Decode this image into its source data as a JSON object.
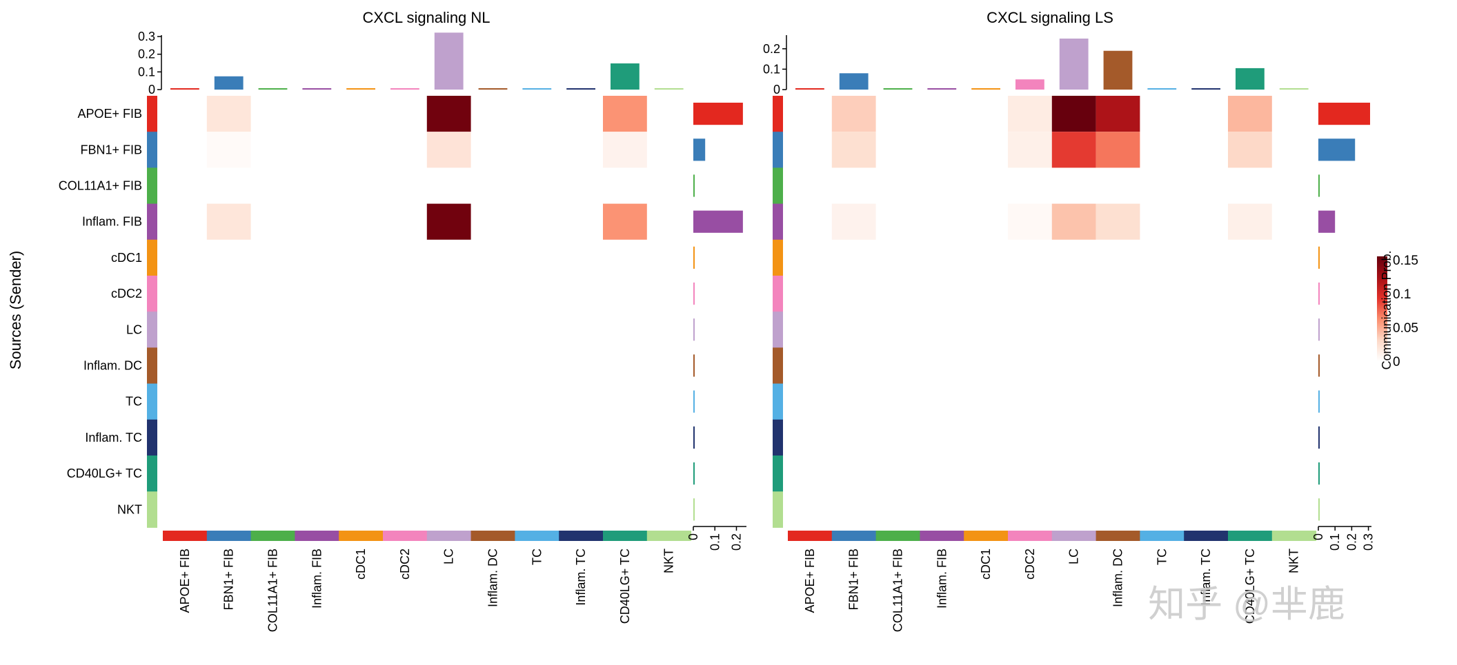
{
  "cell_types": [
    "APOE+ FIB",
    "FBN1+ FIB",
    "COL11A1+ FIB",
    "Inflam. FIB",
    "cDC1",
    "cDC2",
    "LC",
    "Inflam. DC",
    "TC",
    "Inflam. TC",
    "CD40LG+ TC",
    "NKT"
  ],
  "colors": {
    "APOE+ FIB": "#e3281f",
    "FBN1+ FIB": "#3a7db8",
    "COL11A1+ FIB": "#4daf4a",
    "Inflam. FIB": "#984ea3",
    "cDC1": "#f39314",
    "cDC2": "#f384bd",
    "LC": "#bfa1cd",
    "Inflam. DC": "#a45a2a",
    "TC": "#54b0e4",
    "Inflam. TC": "#21336e",
    "CD40LG+ TC": "#1f9c7a",
    "NKT": "#b2de90"
  },
  "y_axis_title": "Sources (Sender)",
  "colorbar": {
    "title": "Communication Prob.",
    "ticks": [
      "0",
      "0.05",
      "0.1",
      "0.15"
    ],
    "tick_values": [
      0,
      0.05,
      0.1,
      0.15
    ],
    "min": 0,
    "max": 0.155,
    "stops": [
      "#ffffff",
      "#fdd8c6",
      "#fb8e6e",
      "#e2312a",
      "#a50f15",
      "#67000d"
    ]
  },
  "watermark": "知乎 @芈鹿",
  "chart_data": [
    {
      "type": "heatmap",
      "title": "CXCL signaling  NL",
      "rows": [
        "APOE+ FIB",
        "FBN1+ FIB",
        "COL11A1+ FIB",
        "Inflam. FIB",
        "cDC1",
        "cDC2",
        "LC",
        "Inflam. DC",
        "TC",
        "Inflam. TC",
        "CD40LG+ TC",
        "NKT"
      ],
      "columns": [
        "APOE+ FIB",
        "FBN1+ FIB",
        "COL11A1+ FIB",
        "Inflam. FIB",
        "cDC1",
        "cDC2",
        "LC",
        "Inflam. DC",
        "TC",
        "Inflam. TC",
        "CD40LG+ TC",
        "NKT"
      ],
      "values": [
        [
          0,
          0.02,
          0,
          0,
          0,
          0,
          0.15,
          0,
          0,
          0,
          0.06,
          0
        ],
        [
          0,
          0.004,
          0,
          0,
          0,
          0,
          0.022,
          0,
          0,
          0,
          0.01,
          0
        ],
        [
          0,
          0,
          0,
          0,
          0,
          0,
          0,
          0,
          0,
          0,
          0,
          0
        ],
        [
          0,
          0.02,
          0,
          0,
          0,
          0,
          0.15,
          0,
          0,
          0,
          0.06,
          0
        ],
        [
          0,
          0,
          0,
          0,
          0,
          0,
          0,
          0,
          0,
          0,
          0,
          0
        ],
        [
          0,
          0,
          0,
          0,
          0,
          0,
          0,
          0,
          0,
          0,
          0,
          0
        ],
        [
          0,
          0,
          0,
          0,
          0,
          0,
          0,
          0,
          0,
          0,
          0,
          0
        ],
        [
          0,
          0,
          0,
          0,
          0,
          0,
          0,
          0,
          0,
          0,
          0,
          0
        ],
        [
          0,
          0,
          0,
          0,
          0,
          0,
          0,
          0,
          0,
          0,
          0,
          0
        ],
        [
          0,
          0,
          0,
          0,
          0,
          0,
          0,
          0,
          0,
          0,
          0,
          0
        ],
        [
          0,
          0,
          0,
          0,
          0,
          0,
          0,
          0,
          0,
          0,
          0,
          0
        ],
        [
          0,
          0,
          0,
          0,
          0,
          0,
          0,
          0,
          0,
          0,
          0,
          0
        ]
      ],
      "top_bars": {
        "values": [
          0.003,
          0.075,
          0.003,
          0.003,
          0.003,
          0.003,
          0.322,
          0.003,
          0.003,
          0.003,
          0.148,
          0.003
        ],
        "ticks": [
          "0",
          "0.1",
          "0.2",
          "0.3"
        ],
        "tick_values": [
          0,
          0.1,
          0.2,
          0.3
        ],
        "max": 0.3
      },
      "right_bars": {
        "values": [
          0.23,
          0.055,
          0.003,
          0.23,
          0.003,
          0.003,
          0.003,
          0.003,
          0.003,
          0.003,
          0.003,
          0.003
        ],
        "ticks": [
          "0",
          "0.1",
          "0.2"
        ],
        "tick_values": [
          0,
          0.1,
          0.2
        ],
        "max": 0.24
      }
    },
    {
      "type": "heatmap",
      "title": "CXCL signaling  LS",
      "rows": [
        "APOE+ FIB",
        "FBN1+ FIB",
        "COL11A1+ FIB",
        "Inflam. FIB",
        "cDC1",
        "cDC2",
        "LC",
        "Inflam. DC",
        "TC",
        "Inflam. TC",
        "CD40LG+ TC",
        "NKT"
      ],
      "columns": [
        "APOE+ FIB",
        "FBN1+ FIB",
        "COL11A1+ FIB",
        "Inflam. FIB",
        "cDC1",
        "cDC2",
        "LC",
        "Inflam. DC",
        "TC",
        "Inflam. TC",
        "CD40LG+ TC",
        "NKT"
      ],
      "values": [
        [
          0,
          0.035,
          0,
          0,
          0,
          0.015,
          0.155,
          0.12,
          0,
          0,
          0.045,
          0
        ],
        [
          0,
          0.025,
          0,
          0,
          0,
          0.012,
          0.09,
          0.07,
          0,
          0,
          0.03,
          0
        ],
        [
          0,
          0,
          0,
          0,
          0,
          0,
          0,
          0,
          0,
          0,
          0,
          0
        ],
        [
          0,
          0.01,
          0,
          0,
          0,
          0.005,
          0.04,
          0.025,
          0,
          0,
          0.012,
          0
        ],
        [
          0,
          0,
          0,
          0,
          0,
          0,
          0,
          0,
          0,
          0,
          0,
          0
        ],
        [
          0,
          0,
          0,
          0,
          0,
          0,
          0,
          0,
          0,
          0,
          0,
          0
        ],
        [
          0,
          0,
          0,
          0,
          0,
          0,
          0,
          0,
          0,
          0,
          0,
          0
        ],
        [
          0,
          0,
          0,
          0,
          0,
          0,
          0,
          0,
          0,
          0,
          0,
          0
        ],
        [
          0,
          0,
          0,
          0,
          0,
          0,
          0,
          0,
          0,
          0,
          0,
          0
        ],
        [
          0,
          0,
          0,
          0,
          0,
          0,
          0,
          0,
          0,
          0,
          0,
          0
        ],
        [
          0,
          0,
          0,
          0,
          0,
          0,
          0,
          0,
          0,
          0,
          0,
          0
        ],
        [
          0,
          0,
          0,
          0,
          0,
          0,
          0,
          0,
          0,
          0,
          0,
          0
        ]
      ],
      "top_bars": {
        "values": [
          0.003,
          0.08,
          0.003,
          0.003,
          0.003,
          0.05,
          0.25,
          0.19,
          0.003,
          0.003,
          0.105,
          0.003
        ],
        "ticks": [
          "0",
          "0.1",
          "0.2"
        ],
        "tick_values": [
          0,
          0.1,
          0.2
        ],
        "max": 0.26
      },
      "right_bars": {
        "values": [
          0.31,
          0.22,
          0.003,
          0.1,
          0.003,
          0.003,
          0.003,
          0.003,
          0.003,
          0.003,
          0.003,
          0.003
        ],
        "ticks": [
          "0",
          "0.1",
          "0.2",
          "0.3"
        ],
        "tick_values": [
          0,
          0.1,
          0.2,
          0.3
        ],
        "max": 0.31
      }
    }
  ]
}
